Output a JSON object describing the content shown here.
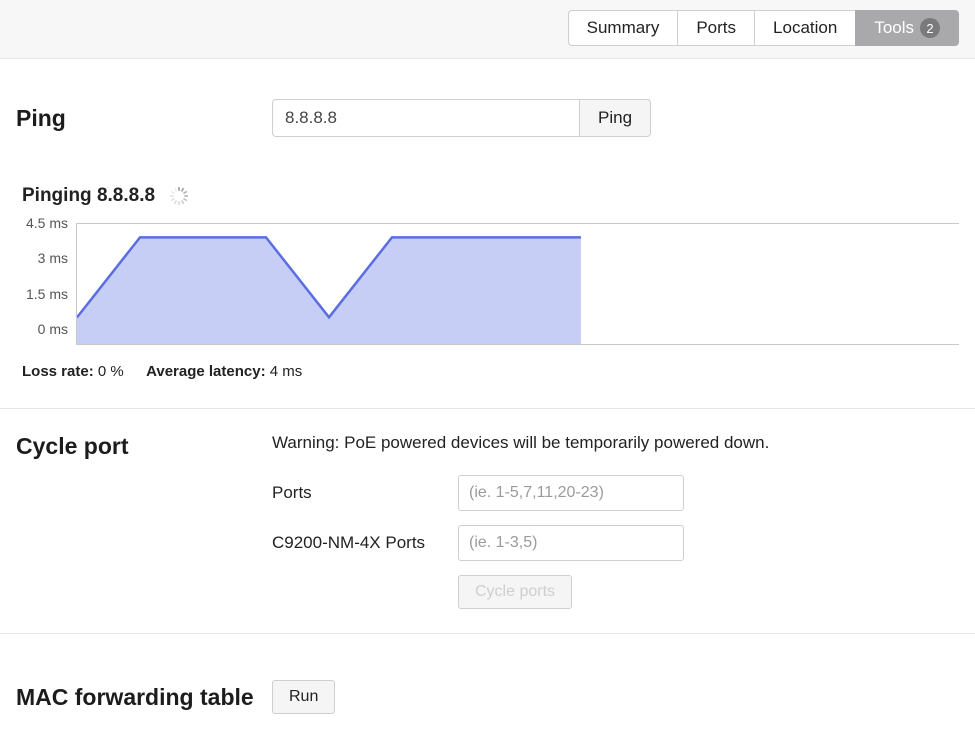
{
  "tabs": {
    "items": [
      {
        "label": "Summary",
        "active": false
      },
      {
        "label": "Ports",
        "active": false
      },
      {
        "label": "Location",
        "active": false
      },
      {
        "label": "Tools",
        "active": true,
        "badge": "2"
      }
    ]
  },
  "ping": {
    "title": "Ping",
    "input_value": "8.8.8.8",
    "button_label": "Ping",
    "status_prefix": "Pinging",
    "status_target": "8.8.8.8",
    "chart": {
      "type": "area",
      "y_max": 4.5,
      "y_ticks": [
        "4.5 ms",
        "3 ms",
        "1.5 ms",
        "0 ms"
      ],
      "values_ms": [
        1.0,
        4.0,
        4.0,
        4.0,
        1.0,
        4.0,
        4.0,
        4.0,
        4.0
      ],
      "x_count_total": 15,
      "line_color": "#5b6ee1",
      "fill_color": "#c0c9f4",
      "fill_opacity": 0.9,
      "line_width": 2.5,
      "background_color": "#ffffff",
      "grid_color": "#c8c8cc"
    },
    "stats": {
      "loss_label": "Loss rate:",
      "loss_value": "0 %",
      "avg_label": "Average latency:",
      "avg_value": "4 ms"
    }
  },
  "cycle": {
    "title": "Cycle port",
    "warning": "Warning: PoE powered devices will be temporarily powered down.",
    "ports_label": "Ports",
    "ports_placeholder": "(ie. 1-5,7,11,20-23)",
    "nm_label": "C9200-NM-4X Ports",
    "nm_placeholder": "(ie. 1-3,5)",
    "button_label": "Cycle ports"
  },
  "mac": {
    "title": "MAC forwarding table",
    "button_label": "Run"
  }
}
